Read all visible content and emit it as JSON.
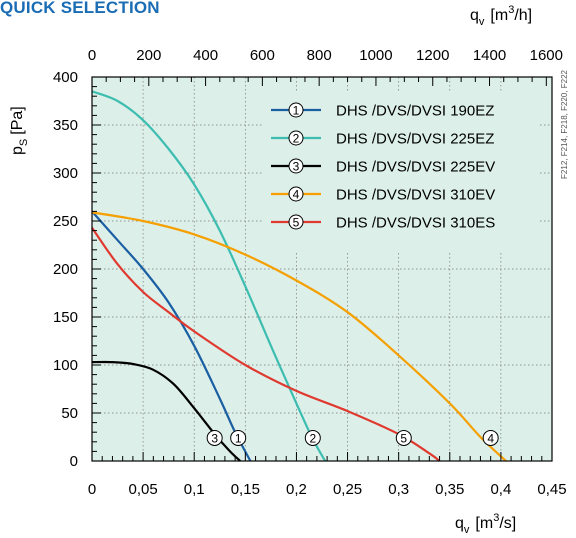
{
  "heading": "QUICK SELECTION",
  "side_code": "F212, F214, F218, F220, F222",
  "chart_data": {
    "type": "line",
    "title": "",
    "xlabel_main": "q",
    "xlabel_sub": "v",
    "xlabel_unit_pre": "[m",
    "xlabel_unit_sup": "3",
    "xlabel_unit_post": "/s]",
    "x2label_main": "q",
    "x2label_sub": "v",
    "x2label_unit_pre": "[m",
    "x2label_unit_sup": "3",
    "x2label_unit_post": "/h]",
    "ylabel_main": "p",
    "ylabel_sub": "S",
    "ylabel_unit": "[Pa]",
    "xlim": [
      0,
      0.45
    ],
    "ylim": [
      0,
      400
    ],
    "x2lim": [
      0,
      1620
    ],
    "x_ticks": [
      0,
      0.05,
      0.1,
      0.15,
      0.2,
      0.25,
      0.3,
      0.35,
      0.4,
      0.45
    ],
    "x_tick_labels": [
      "0",
      "0,05",
      "0,1",
      "0,15",
      "0,2",
      "0,25",
      "0,3",
      "0,35",
      "0,4",
      "0,45"
    ],
    "y_ticks": [
      0,
      50,
      100,
      150,
      200,
      250,
      300,
      350,
      400
    ],
    "y_tick_labels": [
      "0",
      "50",
      "100",
      "150",
      "200",
      "250",
      "300",
      "350",
      "400"
    ],
    "x2_ticks": [
      0,
      200,
      400,
      600,
      800,
      1000,
      1200,
      1400,
      1600
    ],
    "x2_tick_labels": [
      "0",
      "200",
      "400",
      "600",
      "800",
      "1000",
      "1200",
      "1400",
      "1600"
    ],
    "grid": true,
    "background": "#dcefe9",
    "legend_position": "top-right",
    "series": [
      {
        "name": "DHS /DVS/DVSI 190EZ",
        "marker": "1",
        "color": "#1b5fa3",
        "x": [
          0,
          0.025,
          0.05,
          0.075,
          0.1,
          0.125,
          0.14,
          0.155
        ],
        "y": [
          260,
          230,
          200,
          165,
          120,
          65,
          30,
          0
        ],
        "marker_at": [
          0.143,
          24
        ]
      },
      {
        "name": "DHS /DVS/DVSI 225EZ",
        "marker": "2",
        "color": "#3dbdb0",
        "x": [
          0,
          0.025,
          0.05,
          0.075,
          0.1,
          0.125,
          0.15,
          0.175,
          0.2,
          0.215,
          0.228
        ],
        "y": [
          385,
          375,
          355,
          325,
          288,
          240,
          182,
          120,
          60,
          25,
          0
        ],
        "marker_at": [
          0.216,
          24
        ]
      },
      {
        "name": "DHS /DVS/DVSI 225EV",
        "marker": "3",
        "color": "#000000",
        "x": [
          0,
          0.02,
          0.04,
          0.06,
          0.08,
          0.1,
          0.12,
          0.135,
          0.145
        ],
        "y": [
          103,
          103,
          101,
          95,
          80,
          55,
          28,
          10,
          0
        ],
        "marker_at": [
          0.12,
          24
        ]
      },
      {
        "name": "DHS /DVS/DVSI 310EV",
        "marker": "4",
        "color": "#f5a000",
        "x": [
          0,
          0.05,
          0.1,
          0.15,
          0.2,
          0.25,
          0.3,
          0.35,
          0.38,
          0.405
        ],
        "y": [
          259,
          250,
          236,
          215,
          188,
          155,
          110,
          60,
          25,
          0
        ],
        "marker_at": [
          0.39,
          24
        ]
      },
      {
        "name": "DHS /DVS/DVSI 310ES",
        "marker": "5",
        "color": "#e03a30",
        "x": [
          0,
          0.025,
          0.05,
          0.075,
          0.1,
          0.15,
          0.2,
          0.25,
          0.3,
          0.33,
          0.34
        ],
        "y": [
          243,
          205,
          176,
          155,
          135,
          100,
          73,
          52,
          28,
          8,
          0
        ],
        "marker_at": [
          0.305,
          24
        ]
      }
    ]
  }
}
